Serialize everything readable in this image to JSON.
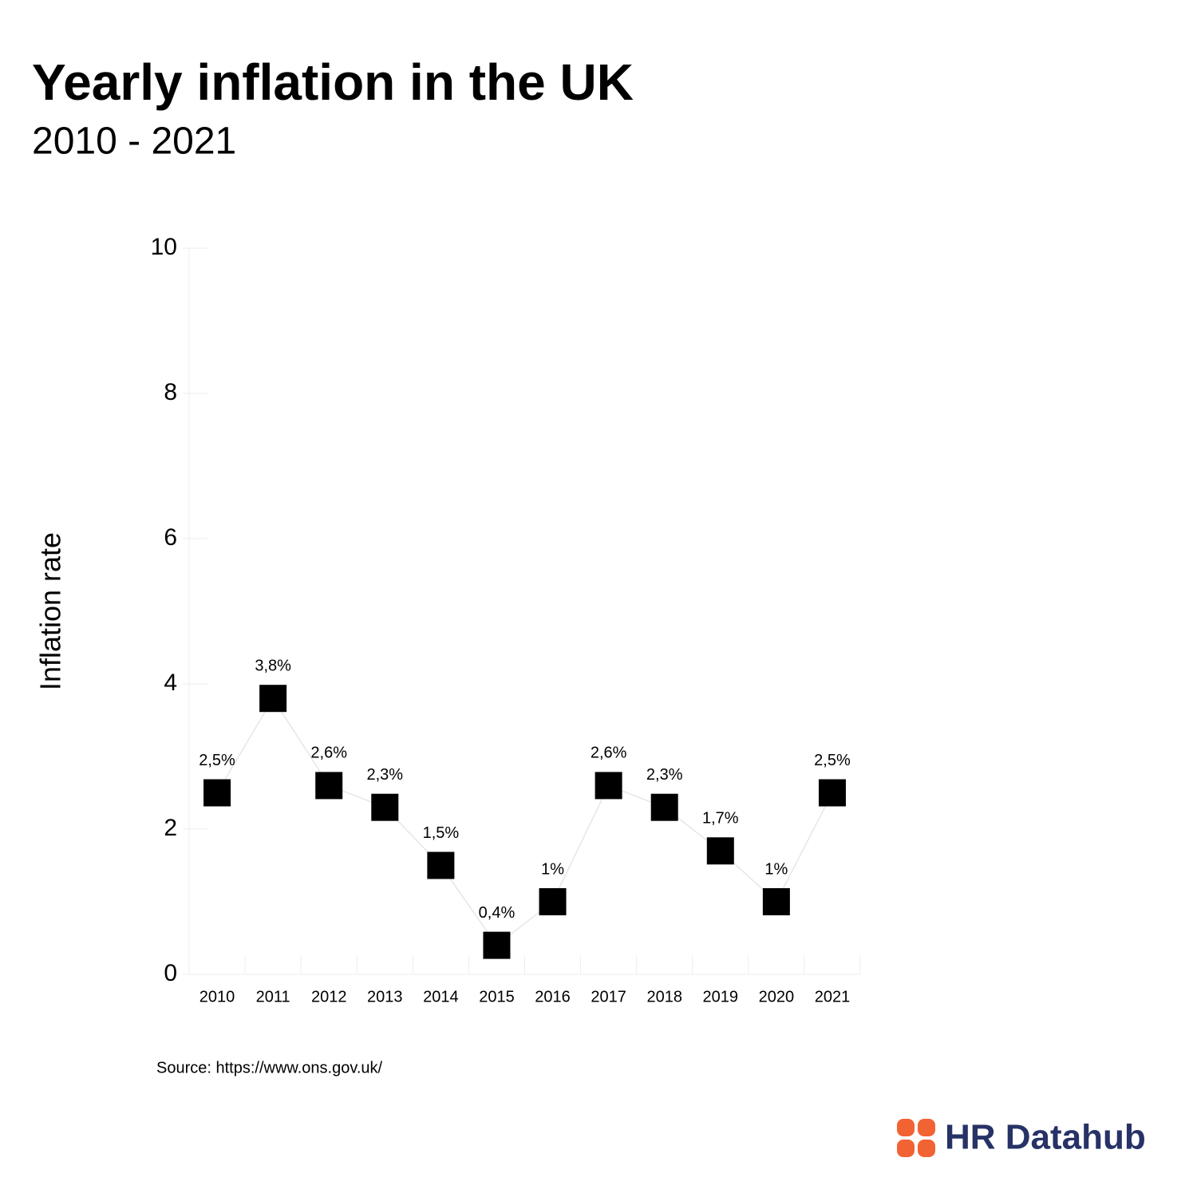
{
  "chart_data": {
    "type": "line",
    "title": "Yearly inflation in the UK",
    "subtitle": "2010 - 2021",
    "y_label": "Inflation rate",
    "source": "Source: https://www.ons.gov.uk/",
    "logo": "HR Datahub",
    "categories": [
      "2010",
      "2011",
      "2012",
      "2013",
      "2014",
      "2015",
      "2016",
      "2017",
      "2018",
      "2019",
      "2020",
      "2021"
    ],
    "values": [
      2.5,
      3.8,
      2.6,
      2.3,
      1.5,
      0.4,
      1,
      2.6,
      2.3,
      1.7,
      1,
      2.5
    ],
    "value_labels": [
      "2,5%",
      "3,8%",
      "2,6%",
      "2,3%",
      "1,5%",
      "0,4%",
      "1%",
      "2,6%",
      "2,3%",
      "1,7%",
      "1%",
      "2,5%"
    ],
    "color": "#000000",
    "line_color": "#e6e6e6",
    "ylim": [
      0,
      10
    ],
    "yticks": [
      0,
      2,
      4,
      6,
      8,
      10
    ],
    "grid": false
  }
}
